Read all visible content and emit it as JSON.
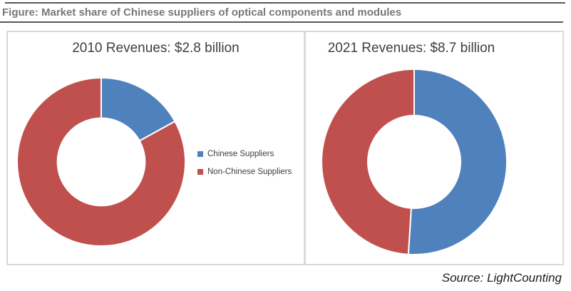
{
  "figure": {
    "title": "Figure: Market share of Chinese suppliers of optical components and modules",
    "source": "Source: LightCounting"
  },
  "legend": {
    "items": [
      {
        "label": "Chinese Suppliers",
        "color": "#4F81BD"
      },
      {
        "label": "Non-Chinese Suppliers",
        "color": "#C0504D"
      }
    ]
  },
  "chart_data": [
    {
      "type": "pie",
      "subtype": "donut",
      "title": "2010 Revenues: $2.8 billion",
      "year": "2010",
      "total_revenue": "$2.8 billion",
      "labels": [
        "Chinese Suppliers",
        "Non-Chinese Suppliers"
      ],
      "values": [
        17,
        83
      ],
      "unit": "percent",
      "colors": [
        "#4F81BD",
        "#C0504D"
      ],
      "start_angle_deg": 0,
      "direction": "clockwise",
      "legend_position": "right"
    },
    {
      "type": "pie",
      "subtype": "donut",
      "title": "2021 Revenues: $8.7 billion",
      "year": "2021",
      "total_revenue": "$8.7 billion",
      "labels": [
        "Chinese Suppliers",
        "Non-Chinese Suppliers"
      ],
      "values": [
        51,
        49
      ],
      "unit": "percent",
      "colors": [
        "#4F81BD",
        "#C0504D"
      ],
      "start_angle_deg": 0,
      "direction": "clockwise",
      "legend_position": "none"
    }
  ]
}
